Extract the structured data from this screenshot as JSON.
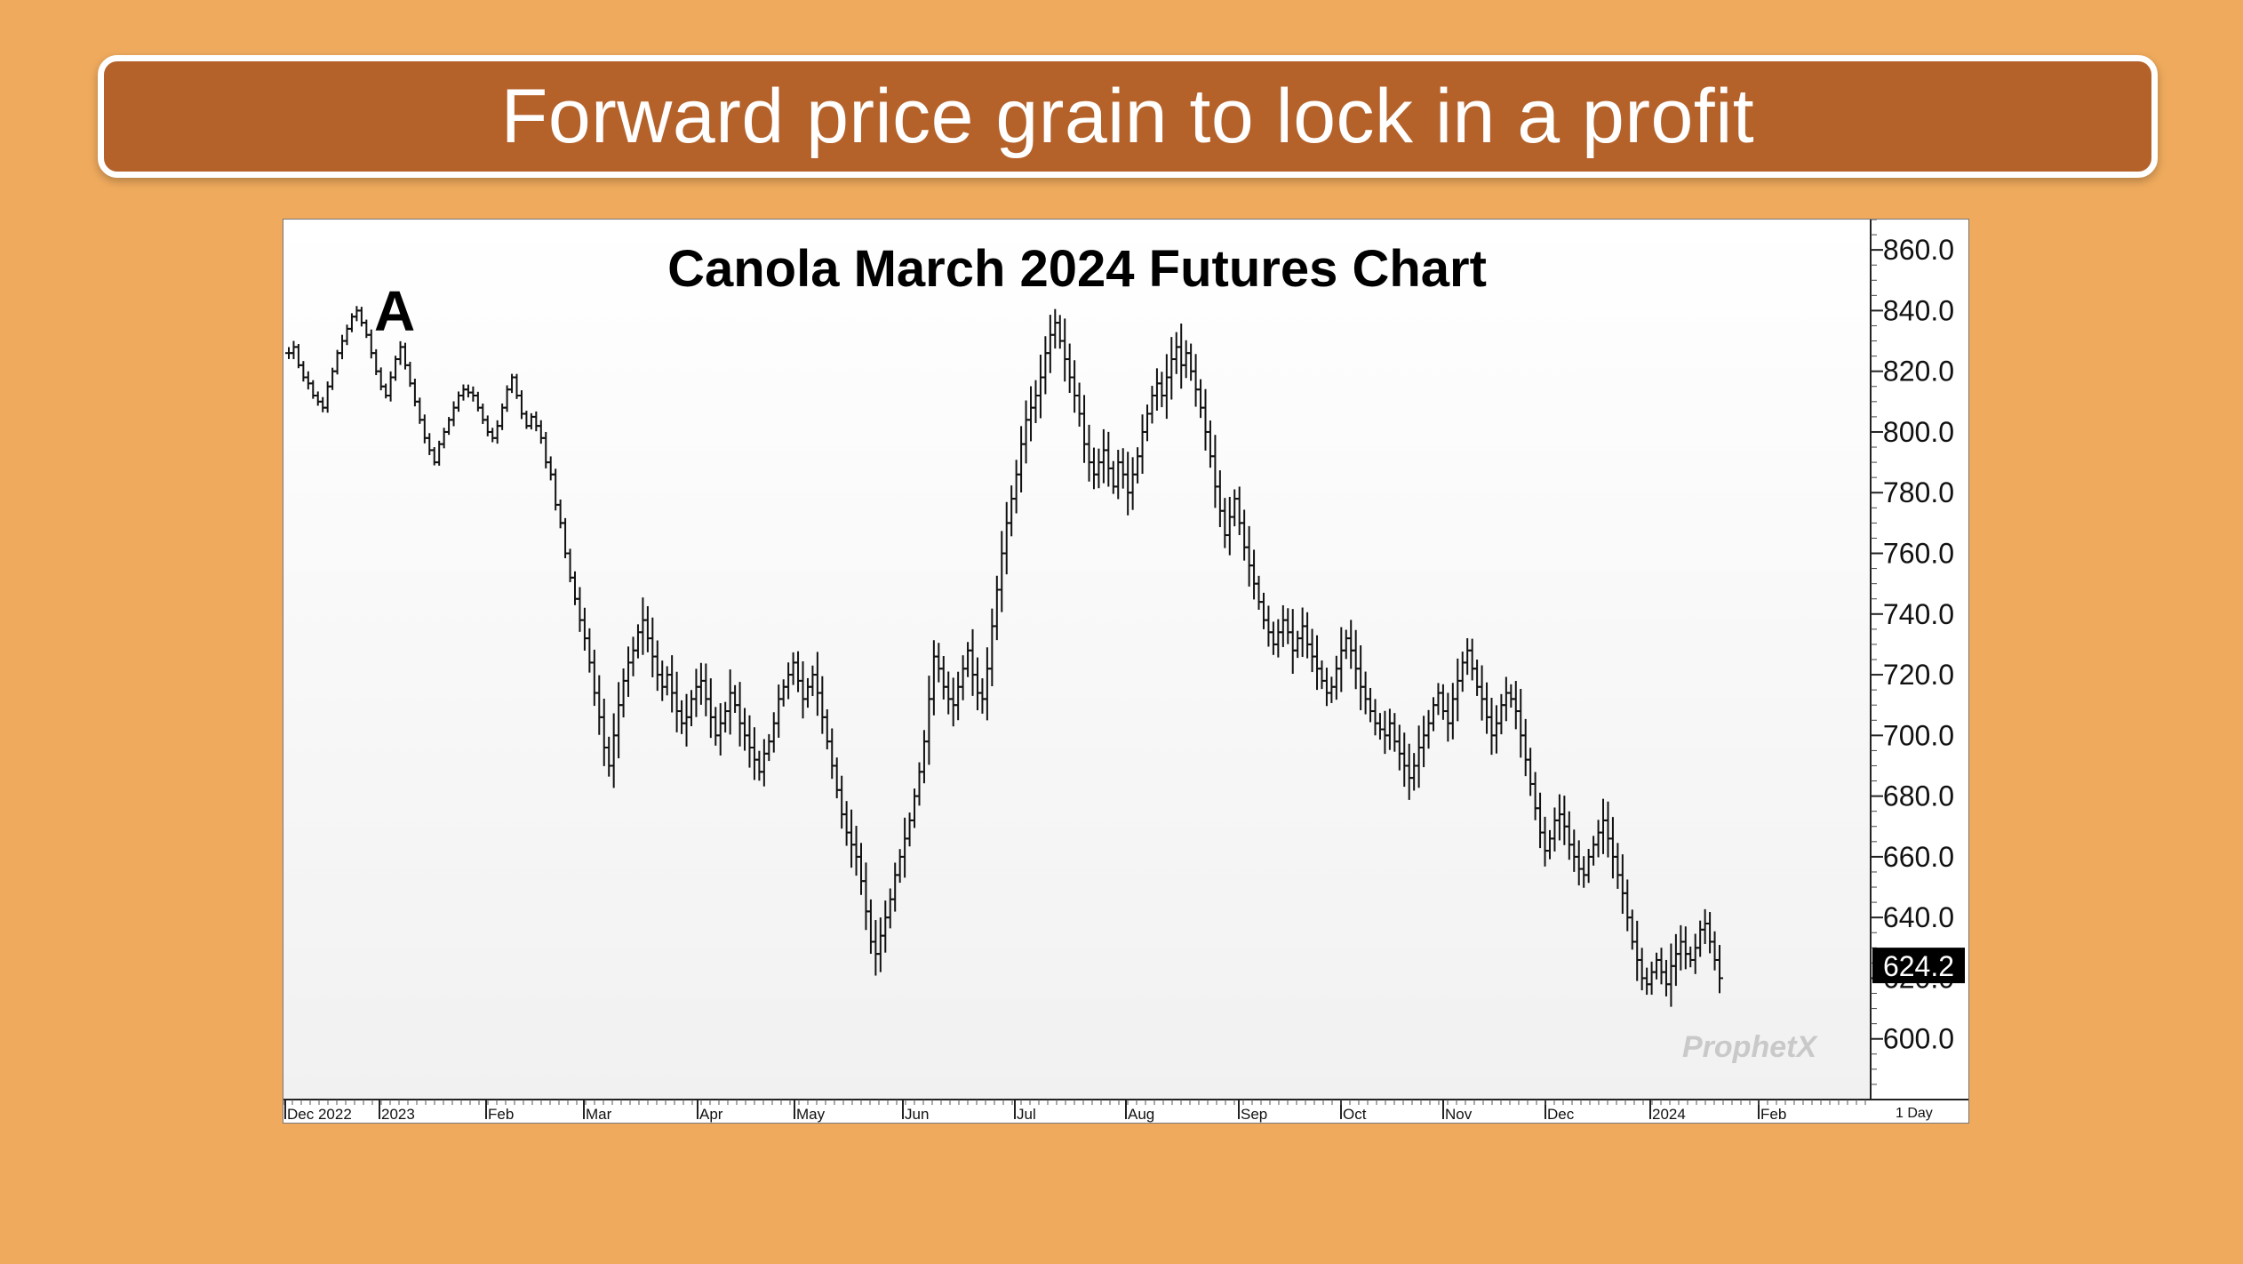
{
  "banner": {
    "title": "Forward price grain to lock in a profit"
  },
  "annotation": {
    "label": "A"
  },
  "watermark": {
    "text": "ProphetX"
  },
  "colors": {
    "background": "#EFAA5D",
    "banner": "#B5622A",
    "bars": "#111111",
    "last_price_tag": "#000000"
  },
  "chart_data": {
    "type": "ohlc",
    "title": "Canola March 2024 Futures Chart",
    "xlabel": "",
    "ylabel": "",
    "ylim": [
      580,
      870
    ],
    "y_ticks": [
      600,
      620,
      640,
      660,
      680,
      700,
      720,
      740,
      760,
      780,
      800,
      820,
      840,
      860
    ],
    "y_tick_labels": [
      "600.0",
      "620.0",
      "640.0",
      "660.0",
      "680.0",
      "700.0",
      "720.0",
      "740.0",
      "760.0",
      "780.0",
      "800.0",
      "820.0",
      "840.0",
      "860.0"
    ],
    "x_tick_labels": [
      "Dec 2022",
      "2023",
      "Feb",
      "Mar",
      "Apr",
      "May",
      "Jun",
      "Jul",
      "Aug",
      "Sep",
      "Oct",
      "Nov",
      "Dec",
      "2024",
      "Feb"
    ],
    "period_label": "1 Day",
    "last_price": "624.2",
    "last_price_value": 624.2,
    "grid": false,
    "prices": [
      826,
      828,
      822,
      818,
      816,
      812,
      810,
      808,
      815,
      820,
      826,
      830,
      834,
      838,
      840,
      836,
      832,
      826,
      820,
      815,
      812,
      818,
      824,
      828,
      822,
      816,
      810,
      804,
      798,
      794,
      790,
      796,
      800,
      804,
      808,
      812,
      814,
      813,
      812,
      808,
      804,
      800,
      798,
      802,
      808,
      814,
      818,
      812,
      806,
      802,
      805,
      802,
      798,
      790,
      786,
      776,
      770,
      760,
      752,
      745,
      738,
      732,
      724,
      714,
      706,
      696,
      690,
      700,
      710,
      718,
      724,
      728,
      734,
      738,
      732,
      726,
      720,
      716,
      720,
      714,
      708,
      704,
      706,
      712,
      716,
      718,
      712,
      706,
      700,
      704,
      708,
      714,
      710,
      704,
      700,
      696,
      692,
      688,
      694,
      698,
      704,
      712,
      716,
      720,
      724,
      718,
      712,
      716,
      720,
      714,
      706,
      698,
      690,
      682,
      674,
      668,
      664,
      660,
      652,
      642,
      632,
      628,
      634,
      640,
      646,
      654,
      660,
      666,
      672,
      680,
      688,
      698,
      712,
      726,
      722,
      716,
      712,
      710,
      716,
      722,
      728,
      720,
      714,
      712,
      722,
      736,
      748,
      760,
      770,
      778,
      786,
      796,
      804,
      808,
      812,
      818,
      826,
      832,
      836,
      830,
      824,
      818,
      812,
      806,
      796,
      790,
      786,
      790,
      794,
      788,
      782,
      790,
      786,
      780,
      786,
      792,
      800,
      806,
      812,
      816,
      812,
      818,
      824,
      828,
      822,
      826,
      820,
      814,
      808,
      800,
      792,
      782,
      774,
      766,
      772,
      778,
      770,
      762,
      756,
      750,
      744,
      738,
      734,
      730,
      734,
      738,
      734,
      728,
      732,
      736,
      730,
      726,
      722,
      718,
      714,
      716,
      722,
      728,
      732,
      728,
      722,
      716,
      712,
      708,
      704,
      702,
      700,
      704,
      698,
      694,
      690,
      686,
      690,
      696,
      700,
      704,
      710,
      714,
      708,
      704,
      712,
      718,
      724,
      728,
      722,
      716,
      712,
      706,
      700,
      704,
      710,
      714,
      712,
      708,
      700,
      692,
      684,
      676,
      668,
      662,
      666,
      672,
      674,
      670,
      664,
      660,
      656,
      654,
      660,
      664,
      668,
      672,
      666,
      660,
      654,
      648,
      640,
      632,
      626,
      620,
      618,
      622,
      626,
      622,
      618,
      624,
      628,
      632,
      628,
      626,
      630,
      636,
      638,
      632,
      626,
      620
    ]
  }
}
